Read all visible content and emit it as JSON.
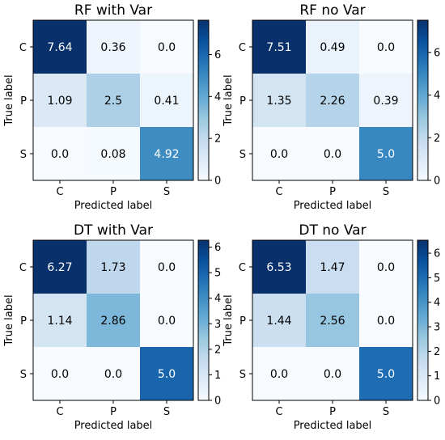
{
  "chart_data": [
    {
      "type": "heatmap",
      "title": "RF with Var",
      "xlabel": "Predicted label",
      "ylabel": "True label",
      "x_categories": [
        "C",
        "P",
        "S"
      ],
      "y_categories": [
        "C",
        "P",
        "S"
      ],
      "values": [
        [
          7.64,
          0.36,
          0.0
        ],
        [
          1.09,
          2.5,
          0.41
        ],
        [
          0.0,
          0.08,
          4.92
        ]
      ],
      "cell_labels": [
        [
          "7.64",
          "0.36",
          "0.0"
        ],
        [
          "1.09",
          "2.5",
          "0.41"
        ],
        [
          "0.0",
          "0.08",
          "4.92"
        ]
      ],
      "colorbar": {
        "min": 0,
        "max": 7.64,
        "ticks": [
          0,
          2,
          4,
          6
        ]
      },
      "colormap": "Blues"
    },
    {
      "type": "heatmap",
      "title": "RF no Var",
      "xlabel": "Predicted label",
      "ylabel": "True label",
      "x_categories": [
        "C",
        "P",
        "S"
      ],
      "y_categories": [
        "C",
        "P",
        "S"
      ],
      "values": [
        [
          7.51,
          0.49,
          0.0
        ],
        [
          1.35,
          2.26,
          0.39
        ],
        [
          0.0,
          0.0,
          5.0
        ]
      ],
      "cell_labels": [
        [
          "7.51",
          "0.49",
          "0.0"
        ],
        [
          "1.35",
          "2.26",
          "0.39"
        ],
        [
          "0.0",
          "0.0",
          "5.0"
        ]
      ],
      "colorbar": {
        "min": 0,
        "max": 7.51,
        "ticks": [
          0,
          2,
          4,
          6
        ]
      },
      "colormap": "Blues"
    },
    {
      "type": "heatmap",
      "title": "DT with Var",
      "xlabel": "Predicted label",
      "ylabel": "True label",
      "x_categories": [
        "C",
        "P",
        "S"
      ],
      "y_categories": [
        "C",
        "P",
        "S"
      ],
      "values": [
        [
          6.27,
          1.73,
          0.0
        ],
        [
          1.14,
          2.86,
          0.0
        ],
        [
          0.0,
          0.0,
          5.0
        ]
      ],
      "cell_labels": [
        [
          "6.27",
          "1.73",
          "0.0"
        ],
        [
          "1.14",
          "2.86",
          "0.0"
        ],
        [
          "0.0",
          "0.0",
          "5.0"
        ]
      ],
      "colorbar": {
        "min": 0,
        "max": 6.27,
        "ticks": [
          0,
          1,
          2,
          3,
          4,
          5,
          6
        ]
      },
      "colormap": "Blues"
    },
    {
      "type": "heatmap",
      "title": "DT no Var",
      "xlabel": "Predicted label",
      "ylabel": "True label",
      "x_categories": [
        "C",
        "P",
        "S"
      ],
      "y_categories": [
        "C",
        "P",
        "S"
      ],
      "values": [
        [
          6.53,
          1.47,
          0.0
        ],
        [
          1.44,
          2.56,
          0.0
        ],
        [
          0.0,
          0.0,
          5.0
        ]
      ],
      "cell_labels": [
        [
          "6.53",
          "1.47",
          "0.0"
        ],
        [
          "1.44",
          "2.56",
          "0.0"
        ],
        [
          "0.0",
          "0.0",
          "5.0"
        ]
      ],
      "colorbar": {
        "min": 0,
        "max": 6.53,
        "ticks": [
          0,
          1,
          2,
          3,
          4,
          5,
          6
        ]
      },
      "colormap": "Blues"
    }
  ]
}
